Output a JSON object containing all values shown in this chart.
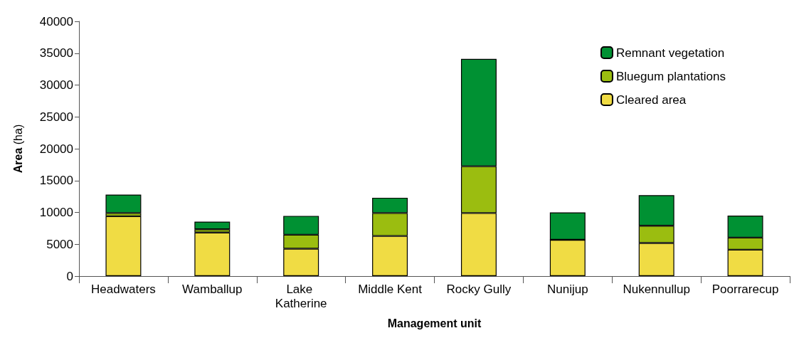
{
  "chart_data": {
    "type": "bar",
    "stacked": true,
    "xlabel": "Management unit",
    "ylabel": "Area (ha)",
    "categories": [
      "Headwaters",
      "Wamballup",
      "Lake Katherine",
      "Middle Kent",
      "Rocky Gully",
      "Nunijup",
      "Nukennullup",
      "Poorrarecup"
    ],
    "series": [
      {
        "name": "Cleared area",
        "color": "#f0dc44",
        "values": [
          9400,
          6850,
          4300,
          6300,
          9900,
          5700,
          5200,
          4150
        ]
      },
      {
        "name": "Bluegum plantations",
        "color": "#9bbd10",
        "values": [
          500,
          500,
          2200,
          3600,
          7350,
          0,
          2700,
          1900
        ]
      },
      {
        "name": "Remnant vegetation",
        "color": "#009133",
        "values": [
          2900,
          1200,
          2950,
          2400,
          16850,
          4300,
          4800,
          3450
        ]
      }
    ],
    "ylim": [
      0,
      40000
    ],
    "yticks": [
      0,
      5000,
      10000,
      15000,
      20000,
      25000,
      30000,
      35000,
      40000
    ],
    "grid": false,
    "legend": "top right"
  }
}
